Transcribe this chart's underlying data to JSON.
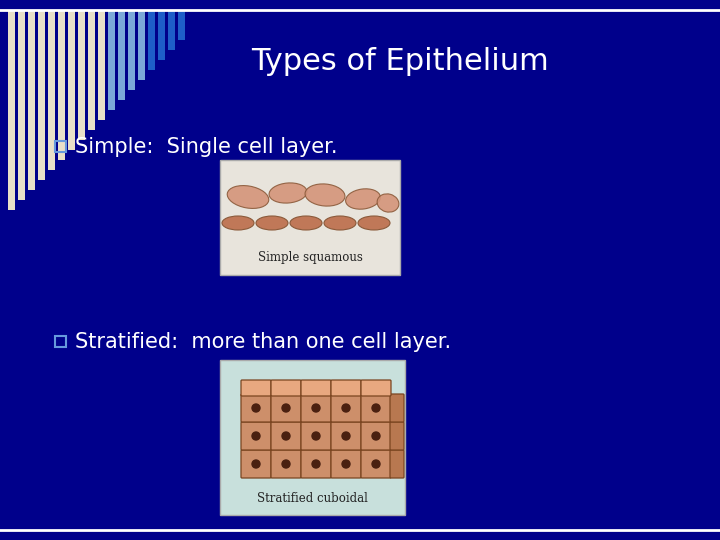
{
  "background_color": "#00008B",
  "title": "Types of Epithelium",
  "title_color": "#FFFFFF",
  "title_fontsize": 22,
  "bullet1_text": " Simple:  Single cell layer.",
  "bullet2_text": " Stratified:  more than one cell layer.",
  "bullet_color": "#FFFFFF",
  "bullet_fontsize": 15,
  "bullet_marker": "o",
  "bullet_marker_color": "#4488CC",
  "top_border_color": "#FFFFFF",
  "bottom_border_color": "#FFFFFF",
  "img1_caption": "Simple squamous",
  "img2_caption": "Stratified cuboidal",
  "img1_bg": "#E8E4DC",
  "img2_bg": "#C8E0DC",
  "stripe_white": "#E8E0C8",
  "stripe_light_blue": "#7BA8D8",
  "stripe_blue": "#1E5EC8",
  "fig_width": 7.2,
  "fig_height": 5.4,
  "dpi": 100
}
